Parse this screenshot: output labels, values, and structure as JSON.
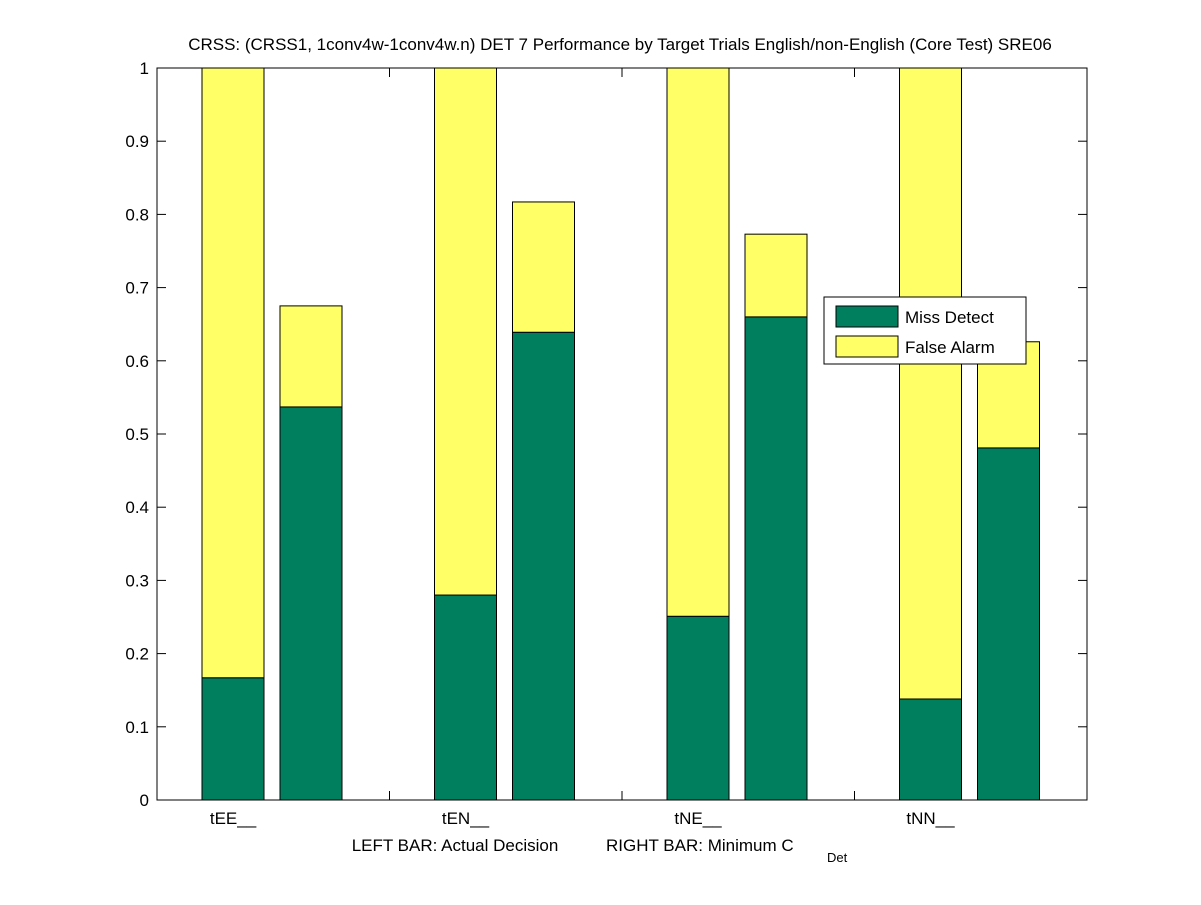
{
  "chart_data": {
    "type": "bar",
    "stacked": true,
    "title": "CRSS: (CRSS1, 1conv4w-1conv4w.n) DET 7 Performance by Target Trials English/non-English (Core Test) SRE06",
    "xlabel_left": "LEFT BAR: Actual Decision",
    "xlabel_right": "RIGHT BAR: Minimum C",
    "xlabel_right_sub": "Det",
    "categories": [
      "tEE__",
      "tEN__",
      "tNE__",
      "tNN__"
    ],
    "ylim": [
      0,
      1
    ],
    "yticks": [
      "0",
      "0.1",
      "0.2",
      "0.3",
      "0.4",
      "0.5",
      "0.6",
      "0.7",
      "0.8",
      "0.9",
      "1"
    ],
    "legend_position": "right",
    "series": [
      {
        "name": "Miss Detect",
        "color": "#007f5f",
        "actual": [
          0.167,
          0.28,
          0.251,
          0.138
        ],
        "minimum": [
          0.537,
          0.639,
          0.66,
          0.481
        ]
      },
      {
        "name": "False Alarm",
        "color": "#ffff66",
        "actual": [
          0.833,
          0.72,
          0.749,
          0.862
        ],
        "minimum": [
          0.138,
          0.178,
          0.113,
          0.145
        ]
      }
    ]
  }
}
